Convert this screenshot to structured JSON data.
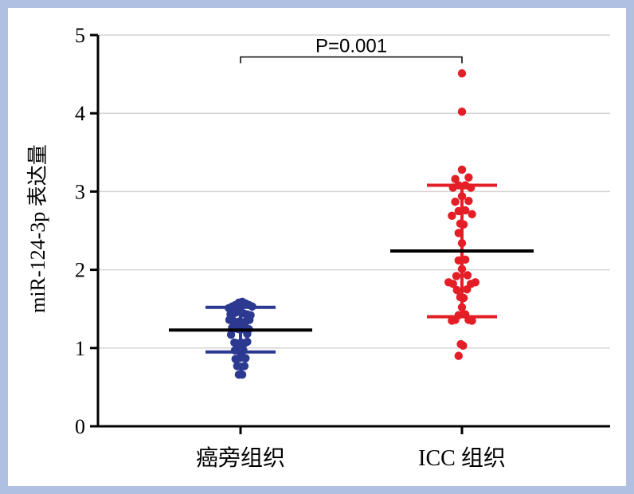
{
  "chart_data": {
    "type": "scatter",
    "ylabel": "miR-124-3p 表达量",
    "xlabel": "",
    "ylim": [
      0,
      5
    ],
    "yticks": [
      0,
      1,
      2,
      3,
      4,
      5
    ],
    "grid": true,
    "categories": [
      "癌旁组织",
      "ICC 组织"
    ],
    "series": [
      {
        "category": "癌旁组织",
        "color": "#2b3990",
        "mean": 1.23,
        "sd_upper": 1.52,
        "sd_lower": 0.95,
        "points": [
          {
            "dx": -1.05,
            "y": 1.51
          },
          {
            "dx": -0.75,
            "y": 1.53
          },
          {
            "dx": -0.45,
            "y": 1.55
          },
          {
            "dx": -0.15,
            "y": 1.58
          },
          {
            "dx": 0.15,
            "y": 1.59
          },
          {
            "dx": 0.45,
            "y": 1.57
          },
          {
            "dx": 0.75,
            "y": 1.55
          },
          {
            "dx": 1.05,
            "y": 1.53
          },
          {
            "dx": -0.9,
            "y": 1.43
          },
          {
            "dx": -0.6,
            "y": 1.44
          },
          {
            "dx": -0.3,
            "y": 1.46
          },
          {
            "dx": 0.0,
            "y": 1.47
          },
          {
            "dx": 0.3,
            "y": 1.44
          },
          {
            "dx": 0.6,
            "y": 1.43
          },
          {
            "dx": 0.9,
            "y": 1.42
          },
          {
            "dx": -1.0,
            "y": 1.36
          },
          {
            "dx": -0.7,
            "y": 1.35
          },
          {
            "dx": -0.4,
            "y": 1.33
          },
          {
            "dx": -0.1,
            "y": 1.34
          },
          {
            "dx": 0.2,
            "y": 1.33
          },
          {
            "dx": 0.5,
            "y": 1.34
          },
          {
            "dx": 0.8,
            "y": 1.36
          },
          {
            "dx": -0.75,
            "y": 1.26
          },
          {
            "dx": -0.45,
            "y": 1.25
          },
          {
            "dx": -0.15,
            "y": 1.24
          },
          {
            "dx": 0.15,
            "y": 1.24
          },
          {
            "dx": 0.45,
            "y": 1.25
          },
          {
            "dx": 0.75,
            "y": 1.24
          },
          {
            "dx": -0.85,
            "y": 1.17
          },
          {
            "dx": 0.6,
            "y": 1.18
          },
          {
            "dx": -0.55,
            "y": 1.07
          },
          {
            "dx": -0.25,
            "y": 1.06
          },
          {
            "dx": 0.05,
            "y": 1.07
          },
          {
            "dx": 0.35,
            "y": 1.06
          },
          {
            "dx": 0.6,
            "y": 1.08
          },
          {
            "dx": -0.5,
            "y": 0.97
          },
          {
            "dx": -0.1,
            "y": 0.96
          },
          {
            "dx": 0.25,
            "y": 0.97
          },
          {
            "dx": -0.45,
            "y": 0.86
          },
          {
            "dx": -0.15,
            "y": 0.87
          },
          {
            "dx": 0.15,
            "y": 0.88
          },
          {
            "dx": 0.45,
            "y": 0.87
          },
          {
            "dx": -0.3,
            "y": 0.77
          },
          {
            "dx": 0.05,
            "y": 0.76
          },
          {
            "dx": 0.35,
            "y": 0.77
          },
          {
            "dx": -0.15,
            "y": 0.66
          },
          {
            "dx": 0.15,
            "y": 0.66
          }
        ]
      },
      {
        "category": "ICC 组织",
        "color": "#e41e26",
        "mean": 2.24,
        "sd_upper": 3.08,
        "sd_lower": 1.4,
        "points": [
          {
            "dx": 0.0,
            "y": 4.51
          },
          {
            "dx": 0.0,
            "y": 4.02
          },
          {
            "dx": 0.0,
            "y": 3.28
          },
          {
            "dx": -0.6,
            "y": 3.16
          },
          {
            "dx": 0.6,
            "y": 3.18
          },
          {
            "dx": -0.8,
            "y": 3.05
          },
          {
            "dx": -0.3,
            "y": 3.08
          },
          {
            "dx": 0.3,
            "y": 3.08
          },
          {
            "dx": 0.8,
            "y": 3.05
          },
          {
            "dx": 0.0,
            "y": 2.94
          },
          {
            "dx": -0.6,
            "y": 2.87
          },
          {
            "dx": 0.6,
            "y": 2.88
          },
          {
            "dx": -0.3,
            "y": 2.75
          },
          {
            "dx": 0.3,
            "y": 2.76
          },
          {
            "dx": -0.9,
            "y": 2.69
          },
          {
            "dx": 0.9,
            "y": 2.71
          },
          {
            "dx": -0.15,
            "y": 2.59
          },
          {
            "dx": 0.15,
            "y": 2.58
          },
          {
            "dx": -0.3,
            "y": 2.47
          },
          {
            "dx": 0.0,
            "y": 2.34
          },
          {
            "dx": -0.3,
            "y": 2.12
          },
          {
            "dx": 0.3,
            "y": 2.13
          },
          {
            "dx": 0.0,
            "y": 2.01
          },
          {
            "dx": -0.5,
            "y": 1.92
          },
          {
            "dx": 0.5,
            "y": 1.93
          },
          {
            "dx": -1.2,
            "y": 1.84
          },
          {
            "dx": -0.8,
            "y": 1.82
          },
          {
            "dx": 0.8,
            "y": 1.82
          },
          {
            "dx": 1.2,
            "y": 1.84
          },
          {
            "dx": -0.45,
            "y": 1.74
          },
          {
            "dx": 0.45,
            "y": 1.75
          },
          {
            "dx": -0.15,
            "y": 1.65
          },
          {
            "dx": 0.15,
            "y": 1.64
          },
          {
            "dx": 0.0,
            "y": 1.52
          },
          {
            "dx": -0.3,
            "y": 1.42
          },
          {
            "dx": 0.3,
            "y": 1.43
          },
          {
            "dx": -0.9,
            "y": 1.35
          },
          {
            "dx": -0.6,
            "y": 1.36
          },
          {
            "dx": 0.6,
            "y": 1.36
          },
          {
            "dx": 0.9,
            "y": 1.35
          },
          {
            "dx": -0.1,
            "y": 1.05
          },
          {
            "dx": 0.1,
            "y": 1.03
          },
          {
            "dx": -0.3,
            "y": 0.9
          }
        ]
      }
    ],
    "annotations": [
      {
        "text": "P=0.001",
        "from_category": 0,
        "to_category": 1,
        "y": 4.72,
        "bracket_drop": 0.08
      }
    ]
  }
}
